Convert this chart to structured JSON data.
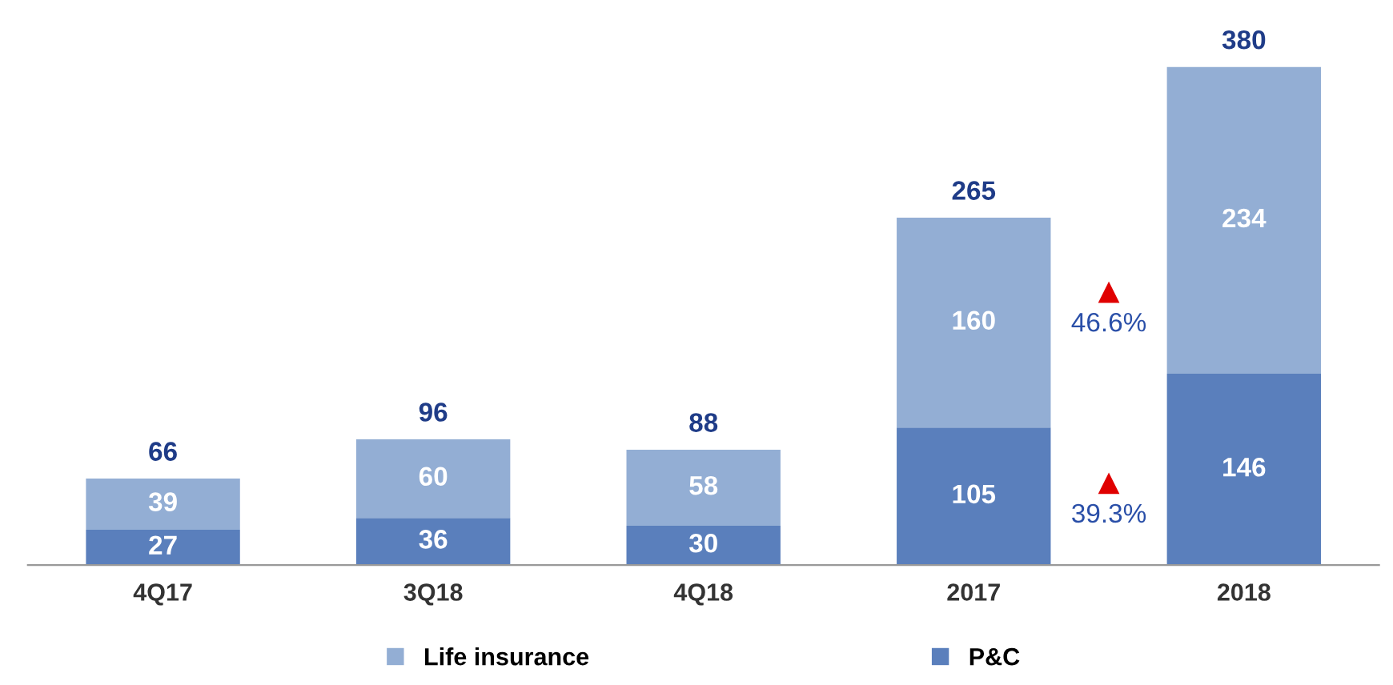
{
  "chart_data": {
    "type": "bar",
    "stacked": true,
    "categories": [
      "4Q17",
      "3Q18",
      "4Q18",
      "2017",
      "2018"
    ],
    "series": [
      {
        "name": "P&C",
        "color": "#5a7fbc",
        "values": [
          27,
          36,
          30,
          105,
          146
        ]
      },
      {
        "name": "Life insurance",
        "color": "#93aed4",
        "values": [
          39,
          60,
          58,
          160,
          234
        ]
      }
    ],
    "totals": [
      "66",
      "96",
      "88",
      "265",
      "380"
    ],
    "data_labels": true,
    "annotations": [
      "46.6%",
      "39.3%"
    ],
    "legend": "bottom",
    "grid": false,
    "tick_labels": "x"
  }
}
